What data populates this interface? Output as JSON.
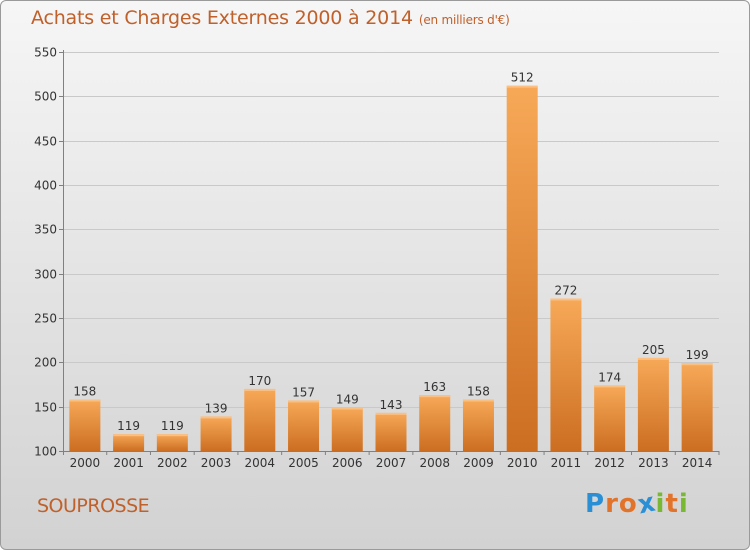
{
  "header": {
    "title": "Achats et Charges Externes 2000 à 2014",
    "unit": "(en milliers d'€)"
  },
  "footer": {
    "place": "SOUPROSSE",
    "logo_letters": [
      "P",
      "r",
      "o",
      "x",
      "i",
      "t",
      "i"
    ],
    "logo_colors": [
      "#2b8fd6",
      "#e2732b",
      "#e2732b",
      "#2b8fd6",
      "#78b832",
      "#e2732b",
      "#78b832"
    ],
    "logo_text": "Proxiti"
  },
  "colors": {
    "title": "#c0602a",
    "bar_top": "#f7a958",
    "bar_bottom": "#cc6e22",
    "grid": "#c9c9c9",
    "axis": "#808080",
    "text": "#333333"
  },
  "chart_data": {
    "type": "bar",
    "categories": [
      "2000",
      "2001",
      "2002",
      "2003",
      "2004",
      "2005",
      "2006",
      "2007",
      "2008",
      "2009",
      "2010",
      "2011",
      "2012",
      "2013",
      "2014"
    ],
    "values": [
      158,
      119,
      119,
      139,
      170,
      157,
      149,
      143,
      163,
      158,
      512,
      272,
      174,
      205,
      199
    ],
    "data_labels": [
      "158",
      "119",
      "119",
      "139",
      "170",
      "157",
      "149",
      "143",
      "163",
      "158",
      "512",
      "272",
      "174",
      "205",
      "199"
    ],
    "title": "Achats et Charges Externes 2000 à 2014",
    "ylim": [
      100,
      550
    ],
    "yticks": [
      100,
      150,
      200,
      250,
      300,
      350,
      400,
      450,
      500,
      550
    ],
    "ytick_labels": [
      "100",
      "150",
      "200",
      "250",
      "300",
      "350",
      "400",
      "450",
      "500",
      "550"
    ],
    "grid": true
  }
}
